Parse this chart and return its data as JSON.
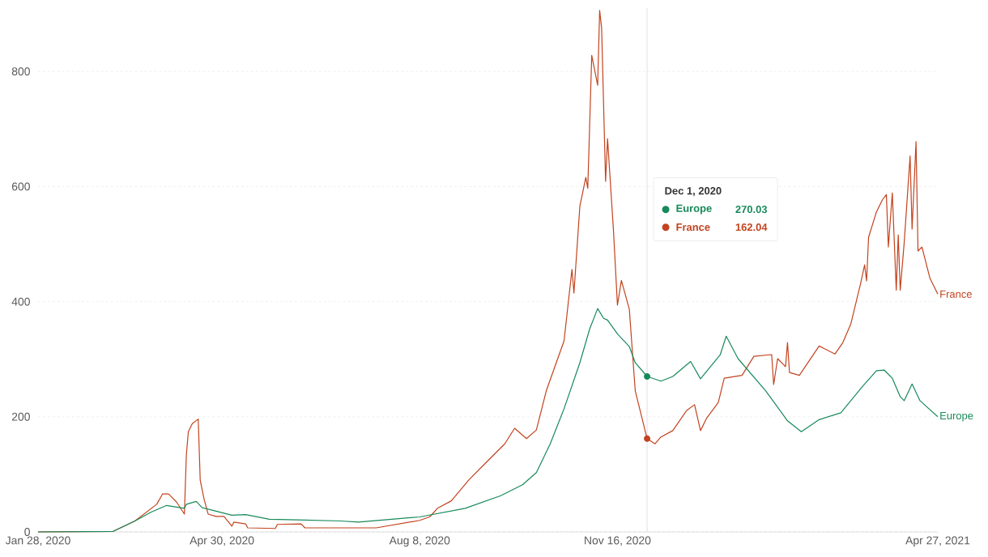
{
  "chart_data": {
    "type": "line",
    "xlim": [
      "2020-01-28",
      "2021-04-27"
    ],
    "ylim": [
      0,
      910
    ],
    "xticks": [
      {
        "value": "2020-01-28",
        "label": "Jan 28, 2020"
      },
      {
        "value": "2020-04-30",
        "label": "Apr 30, 2020"
      },
      {
        "value": "2020-08-08",
        "label": "Aug 8, 2020"
      },
      {
        "value": "2020-11-16",
        "label": "Nov 16, 2020"
      },
      {
        "value": "2021-04-27",
        "label": "Apr 27, 2021"
      }
    ],
    "yticks": [
      0,
      200,
      400,
      600,
      800
    ],
    "grid": "y",
    "legend": "top right",
    "annotations": [
      "270.03",
      "162.04"
    ],
    "ref_lines": [
      {
        "axis": "x",
        "value": "2020-12-01",
        "label": "Dec 1, 2020",
        "color": "#e0e0e0"
      }
    ],
    "series": [
      {
        "name": "Europe",
        "color": "#17895a",
        "x": [
          "2020-01-28",
          "2020-03-06",
          "2020-03-17",
          "2020-03-25",
          "2020-04-02",
          "2020-04-11",
          "2020-04-12",
          "2020-04-17",
          "2020-04-20",
          "2020-04-27",
          "2020-05-05",
          "2020-05-12",
          "2020-05-24",
          "2020-06-07",
          "2020-06-29",
          "2020-07-08",
          "2020-08-08",
          "2020-08-31",
          "2020-09-18",
          "2020-09-29",
          "2020-10-06",
          "2020-10-13",
          "2020-10-20",
          "2020-10-28",
          "2020-11-02",
          "2020-11-06",
          "2020-11-09",
          "2020-11-11",
          "2020-11-16",
          "2020-11-22",
          "2020-11-25",
          "2020-12-01",
          "2020-12-08",
          "2020-12-14",
          "2020-12-23",
          "2020-12-28",
          "2021-01-07",
          "2021-01-10",
          "2021-01-16",
          "2021-01-30",
          "2021-02-10",
          "2021-02-17",
          "2021-02-26",
          "2021-03-09",
          "2021-03-20",
          "2021-03-27",
          "2021-03-31",
          "2021-04-04",
          "2021-04-08",
          "2021-04-10",
          "2021-04-14",
          "2021-04-18",
          "2021-04-27"
        ],
        "values": [
          0,
          1,
          19,
          34,
          46,
          41,
          48,
          53,
          42,
          36,
          29,
          30,
          22,
          21,
          19,
          17,
          26,
          41,
          63,
          82,
          103,
          153,
          214,
          294,
          353,
          388,
          371,
          368,
          344,
          322,
          294,
          270.03,
          262,
          270,
          296,
          266,
          308,
          340,
          301,
          245,
          193,
          174,
          195,
          207,
          253,
          280,
          281,
          267,
          235,
          228,
          257,
          228,
          200
        ]
      },
      {
        "name": "France",
        "color": "#c2431f",
        "x": [
          "2020-01-28",
          "2020-03-06",
          "2020-03-17",
          "2020-03-28",
          "2020-03-31",
          "2020-04-03",
          "2020-04-07",
          "2020-04-11",
          "2020-04-12",
          "2020-04-13",
          "2020-04-15",
          "2020-04-18",
          "2020-04-19",
          "2020-04-21",
          "2020-04-23",
          "2020-04-27",
          "2020-05-01",
          "2020-05-05",
          "2020-05-06",
          "2020-05-12",
          "2020-05-13",
          "2020-05-27",
          "2020-05-28",
          "2020-06-09",
          "2020-06-11",
          "2020-07-17",
          "2020-08-08",
          "2020-08-13",
          "2020-08-17",
          "2020-08-24",
          "2020-09-02",
          "2020-09-11",
          "2020-09-20",
          "2020-09-25",
          "2020-10-01",
          "2020-10-06",
          "2020-10-11",
          "2020-10-20",
          "2020-10-24",
          "2020-10-25",
          "2020-10-28",
          "2020-10-31",
          "2020-11-01",
          "2020-11-03",
          "2020-11-06",
          "2020-11-07",
          "2020-11-08",
          "2020-11-10",
          "2020-11-11",
          "2020-11-14",
          "2020-11-16",
          "2020-11-18",
          "2020-11-22",
          "2020-11-25",
          "2020-12-01",
          "2020-12-05",
          "2020-12-08",
          "2020-12-14",
          "2020-12-21",
          "2020-12-25",
          "2020-12-28",
          "2020-12-31",
          "2021-01-06",
          "2021-01-09",
          "2021-01-18",
          "2021-01-24",
          "2021-02-02",
          "2021-02-03",
          "2021-02-05",
          "2021-02-09",
          "2021-02-10",
          "2021-02-11",
          "2021-02-16",
          "2021-02-26",
          "2021-03-06",
          "2021-03-10",
          "2021-03-14",
          "2021-03-19",
          "2021-03-21",
          "2021-03-22",
          "2021-03-23",
          "2021-03-27",
          "2021-03-30",
          "2021-04-01",
          "2021-04-02",
          "2021-04-04",
          "2021-04-06",
          "2021-04-07",
          "2021-04-08",
          "2021-04-10",
          "2021-04-13",
          "2021-04-14",
          "2021-04-16",
          "2021-04-17",
          "2021-04-19",
          "2021-04-23",
          "2021-04-27"
        ],
        "values": [
          0,
          1,
          19,
          48,
          66,
          66,
          52,
          31,
          134,
          174,
          188,
          196,
          90,
          56,
          31,
          27,
          27,
          10,
          17,
          14,
          7,
          6,
          13,
          14,
          7,
          7,
          20,
          26,
          41,
          54,
          91,
          122,
          153,
          180,
          162,
          177,
          245,
          332,
          456,
          415,
          566,
          616,
          597,
          828,
          776,
          906,
          875,
          609,
          683,
          523,
          394,
          437,
          387,
          245,
          162.04,
          153,
          165,
          176,
          211,
          221,
          176,
          197,
          225,
          267,
          272,
          305,
          308,
          256,
          301,
          287,
          329,
          277,
          272,
          323,
          309,
          329,
          361,
          432,
          464,
          436,
          512,
          556,
          577,
          586,
          495,
          589,
          420,
          516,
          420,
          502,
          653,
          526,
          678,
          488,
          495,
          441,
          413
        ]
      }
    ]
  }
}
